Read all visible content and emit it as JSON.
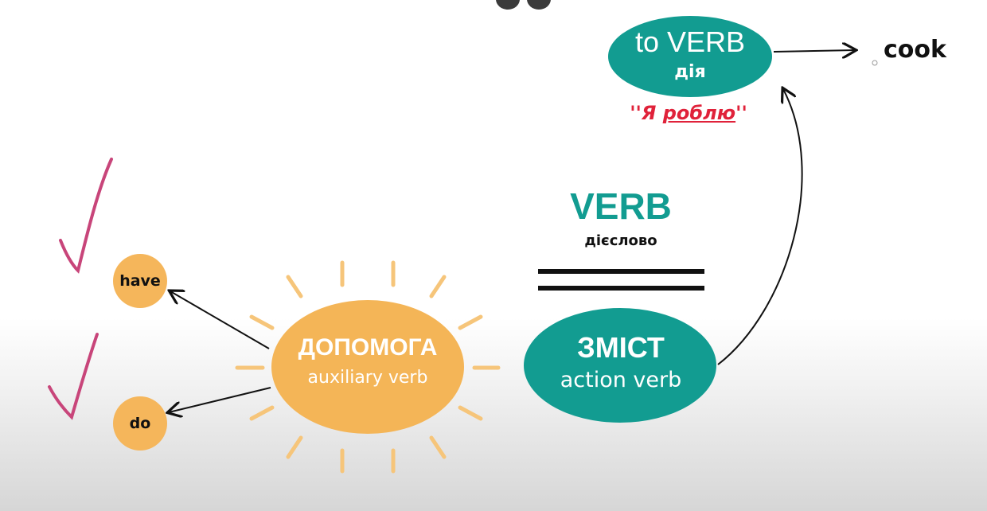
{
  "diagram": {
    "verb_heading": "VERB",
    "verb_sub": "дієслово",
    "helper_title": "ДОПОМОГА",
    "helper_sub": "auxiliary verb",
    "content_title": "ЗМІСТ",
    "content_sub": "action verb",
    "to_verb_title": "to VERB",
    "to_verb_sub": "дія",
    "quote_open": "''",
    "quote_word1": "Я ",
    "quote_word2": "роблю",
    "quote_close": "''",
    "aux_items": [
      "have",
      "do"
    ],
    "example_word": "cook"
  },
  "colors": {
    "teal": "#129c91",
    "sun": "#f4b557",
    "small_circle": "#f5b65b",
    "ray": "#f6c57a",
    "check": "#c8457a",
    "quote_red": "#e0223a"
  }
}
